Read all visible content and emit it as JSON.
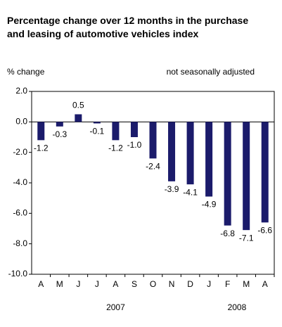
{
  "chart_data": {
    "type": "bar",
    "title": "Percentage change over 12 months in the purchase and leasing of automotive vehicles index",
    "y_label": "% change",
    "note": "not seasonally adjusted",
    "categories": [
      "A",
      "M",
      "J",
      "J",
      "A",
      "S",
      "O",
      "N",
      "D",
      "J",
      "F",
      "M",
      "A"
    ],
    "values": [
      -1.2,
      -0.3,
      0.5,
      -0.1,
      -1.2,
      -1.0,
      -2.4,
      -3.9,
      -4.1,
      -4.9,
      -6.8,
      -7.1,
      -6.6
    ],
    "value_labels": [
      "-1.2",
      "-0.3",
      "0.5",
      "-0.1",
      "-1.2",
      "-1.0",
      "-2.4",
      "-3.9",
      "-4.1",
      "-4.9",
      "-6.8",
      "-7.1",
      "-6.6"
    ],
    "x_groups": [
      {
        "label": "2007",
        "categories": 9
      },
      {
        "label": "2008",
        "categories": 4
      }
    ],
    "color": "#1b1b6b",
    "ylim": [
      -10,
      2
    ],
    "yticks": [
      {
        "value": 2,
        "label": "2.0"
      },
      {
        "value": 0,
        "label": "0.0"
      },
      {
        "value": -2,
        "label": "-2.0"
      },
      {
        "value": -4,
        "label": "-4.0"
      },
      {
        "value": -6,
        "label": "-6.0"
      },
      {
        "value": -8,
        "label": "-8.0"
      },
      {
        "value": -10,
        "label": "-10.0"
      }
    ],
    "grid": false
  }
}
